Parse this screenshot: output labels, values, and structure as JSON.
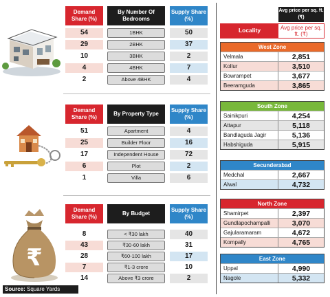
{
  "source": {
    "label": "Source:",
    "text": " Square Yards"
  },
  "watermark": "",
  "colors": {
    "red": "#d7262e",
    "black": "#1d1d1d",
    "blue": "#2f86c8",
    "orange": "#ea6a2a",
    "green": "#78b83a"
  },
  "bedrooms": {
    "demand_header": "Demand Share (%)",
    "mid_header": "By Number Of Bedrooms",
    "supply_header": "Supply Share (%)",
    "rows": [
      {
        "demand": "54",
        "label": "1BHK",
        "supply": "50"
      },
      {
        "demand": "29",
        "label": "2BHK",
        "supply": "37"
      },
      {
        "demand": "10",
        "label": "3BHK",
        "supply": "2"
      },
      {
        "demand": "4",
        "label": "4BHK",
        "supply": "7"
      },
      {
        "demand": "2",
        "label": "Above 4BHK",
        "supply": "4"
      }
    ]
  },
  "property": {
    "demand_header": "Demand Share (%)",
    "mid_header": "By Property Type",
    "supply_header": "Supply Share (%)",
    "rows": [
      {
        "demand": "51",
        "label": "Apartment",
        "supply": "4"
      },
      {
        "demand": "25",
        "label": "Builder Floor",
        "supply": "16"
      },
      {
        "demand": "17",
        "label": "Independent House",
        "supply": "72"
      },
      {
        "demand": "6",
        "label": "Plot",
        "supply": "2"
      },
      {
        "demand": "1",
        "label": "Villa",
        "supply": "6"
      }
    ]
  },
  "budget": {
    "demand_header": "Demand Share (%)",
    "mid_header": "By Budget",
    "supply_header": "Supply Share (%)",
    "rows": [
      {
        "demand": "8",
        "label": "< ₹30 lakh",
        "supply": "40"
      },
      {
        "demand": "43",
        "label": "₹30-60 lakh",
        "supply": "31"
      },
      {
        "demand": "28",
        "label": "₹60-100 lakh",
        "supply": "17"
      },
      {
        "demand": "7",
        "label": "₹1-3 crore",
        "supply": "10"
      },
      {
        "demand": "14",
        "label": "Above ₹3 crore",
        "supply": "2"
      }
    ]
  },
  "locality": {
    "top_label": "Avg price per sq. ft. (₹)",
    "header_locality": "Locality",
    "header_price": "Avg price per sq. ft. (₹)",
    "zones": [
      {
        "name": "West Zone",
        "color": "#ea6a2a",
        "rows": [
          {
            "name": "Velmala",
            "price": "2,851"
          },
          {
            "name": "Kollur",
            "price": "3,510"
          },
          {
            "name": "Bowrampet",
            "price": "3,677"
          },
          {
            "name": "Beeramguda",
            "price": "3,865"
          }
        ]
      },
      {
        "name": "South Zone",
        "color": "#78b83a",
        "rows": [
          {
            "name": "Sainikpuri",
            "price": "4,254"
          },
          {
            "name": "Attapur",
            "price": "5,118"
          },
          {
            "name": "Bandlaguda Jagir",
            "price": "5,136"
          },
          {
            "name": "Habshiguda",
            "price": "5,915"
          }
        ]
      },
      {
        "name": "Secunderabad",
        "color": "#2f86c8",
        "rows": [
          {
            "name": "Medchal",
            "price": "2,667"
          },
          {
            "name": "Alwal",
            "price": "4,732"
          }
        ]
      },
      {
        "name": "North Zone",
        "color": "#d7262e",
        "rows": [
          {
            "name": "Shamirpet",
            "price": "2,397"
          },
          {
            "name": "Gundlapochampalli",
            "price": "3,070"
          },
          {
            "name": "Gajularamaram",
            "price": "4,672"
          },
          {
            "name": "Kompally",
            "price": "4,765"
          }
        ]
      },
      {
        "name": "East Zone",
        "color": "#2f86c8",
        "rows": [
          {
            "name": "Uppal",
            "price": "4,990"
          },
          {
            "name": "Nagole",
            "price": "5,332"
          }
        ]
      }
    ]
  }
}
